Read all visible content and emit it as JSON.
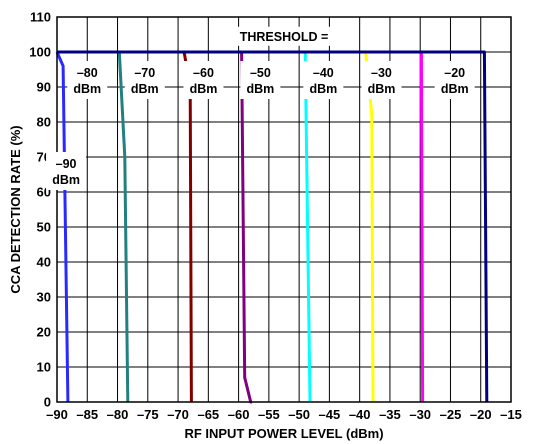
{
  "chart_data": {
    "type": "line",
    "xlabel": "RF INPUT POWER LEVEL (dBm)",
    "ylabel": "CCA DETECTION RATE (%)",
    "xlim": [
      -90,
      -15
    ],
    "ylim": [
      0,
      110
    ],
    "x_ticks": [
      -90,
      -85,
      -80,
      -75,
      -70,
      -65,
      -60,
      -55,
      -50,
      -45,
      -40,
      -35,
      -30,
      -25,
      -20,
      -15
    ],
    "y_ticks": [
      0,
      10,
      20,
      30,
      40,
      50,
      60,
      70,
      80,
      90,
      100,
      110
    ],
    "x_tick_labels": [
      "–90",
      "–85",
      "–80",
      "–75",
      "–70",
      "–65",
      "–60",
      "–55",
      "–50",
      "–45",
      "–40",
      "–35",
      "–30",
      "–25",
      "–20",
      "–15"
    ],
    "y_tick_labels": [
      "0",
      "10",
      "20",
      "30",
      "40",
      "50",
      "60",
      "70",
      "80",
      "90",
      "100",
      "110"
    ],
    "grid": true,
    "header_annotation": "THRESHOLD =",
    "series": [
      {
        "name": "–90 dBm",
        "color": "#2a2aff",
        "x": [
          -90,
          -89,
          -88.2,
          -88.2
        ],
        "y": [
          100,
          96,
          0,
          0
        ]
      },
      {
        "name": "–80 dBm",
        "color": "#228080",
        "x": [
          -90,
          -79.7,
          -78.8,
          -78.3,
          -78.3
        ],
        "y": [
          100,
          100,
          70,
          0,
          0
        ]
      },
      {
        "name": "–70 dBm",
        "color": "#800000",
        "x": [
          -90,
          -69,
          -68,
          -67.8,
          -67.8
        ],
        "y": [
          100,
          100,
          90,
          0,
          0
        ]
      },
      {
        "name": "–60 dBm",
        "color": "#800080",
        "x": [
          -90,
          -59.5,
          -59,
          -58,
          -57.8,
          -57.8
        ],
        "y": [
          100,
          100,
          7,
          0,
          0,
          0
        ]
      },
      {
        "name": "–50 dBm",
        "color": "#00ffff",
        "x": [
          -90,
          -49,
          -48.2,
          -48.2
        ],
        "y": [
          100,
          100,
          0,
          0
        ]
      },
      {
        "name": "–40 dBm",
        "color": "#ffff00",
        "x": [
          -90,
          -39,
          -38,
          -37.8,
          -37.8
        ],
        "y": [
          100,
          100,
          82,
          0,
          0
        ]
      },
      {
        "name": "–30 dBm",
        "color": "#ff00ff",
        "x": [
          -90,
          -29.8,
          -29.6,
          -29.6
        ],
        "y": [
          100,
          100,
          0,
          0
        ]
      },
      {
        "name": "–20 dBm",
        "color": "#000080",
        "x": [
          -90,
          -19.4,
          -19,
          -19
        ],
        "y": [
          100,
          100,
          0,
          0
        ]
      }
    ],
    "annotations": [
      {
        "line1": "–90",
        "line2": "dBm"
      },
      {
        "line1": "–80",
        "line2": "dBm"
      },
      {
        "line1": "–70",
        "line2": "dBm"
      },
      {
        "line1": "–60",
        "line2": "dBm"
      },
      {
        "line1": "–50",
        "line2": "dBm"
      },
      {
        "line1": "–40",
        "line2": "dBm"
      },
      {
        "line1": "–30",
        "line2": "dBm"
      },
      {
        "line1": "–20",
        "line2": "dBm"
      }
    ]
  }
}
